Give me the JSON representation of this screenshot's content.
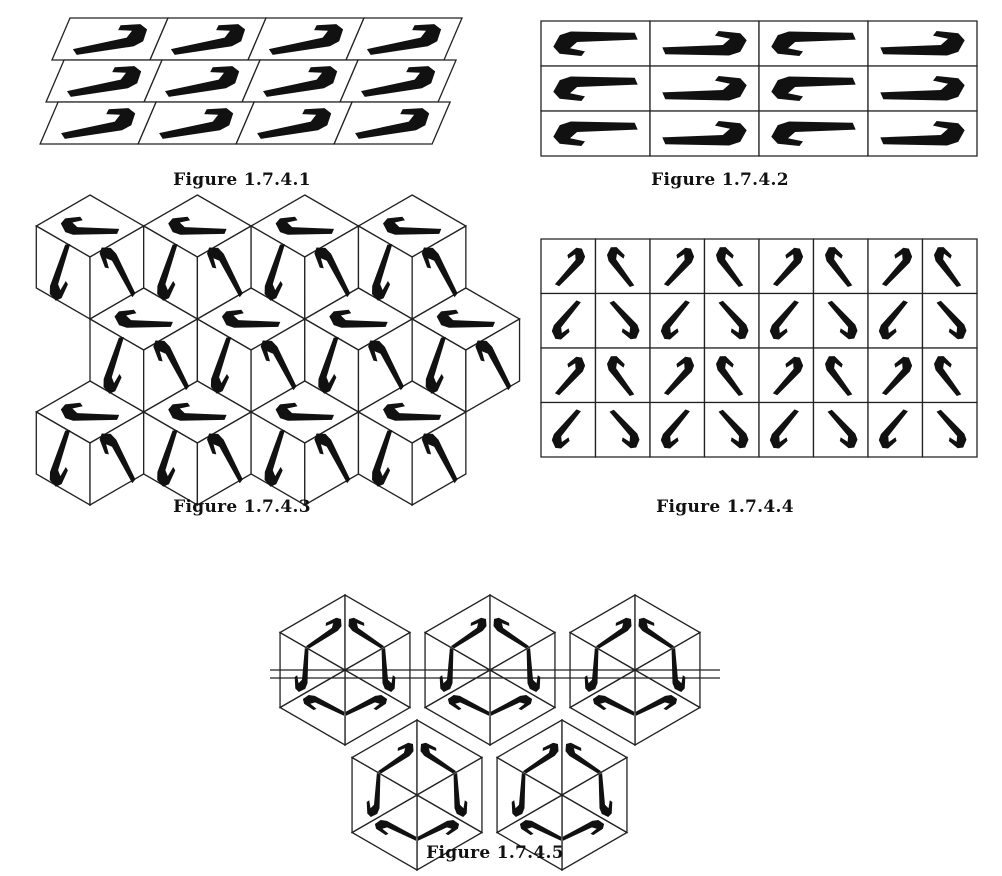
{
  "figures": [
    {
      "id": "fig1",
      "caption": "Figure 1.7.4.1",
      "tiling": "parallelogram-translation"
    },
    {
      "id": "fig2",
      "caption": "Figure 1.7.4.2",
      "tiling": "rectangle-glide"
    },
    {
      "id": "fig3",
      "caption": "Figure 1.7.4.3",
      "tiling": "rhombus-cube"
    },
    {
      "id": "fig4",
      "caption": "Figure 1.7.4.4",
      "tiling": "square-rotation"
    },
    {
      "id": "fig5",
      "caption": "Figure 1.7.4.5",
      "tiling": "triangle-hexagonal"
    }
  ],
  "motif": {
    "glyph": "J",
    "icon": "hook-motif-icon"
  },
  "colors": {
    "ink": "#111111",
    "line": "#222222",
    "background": "#ffffff"
  }
}
